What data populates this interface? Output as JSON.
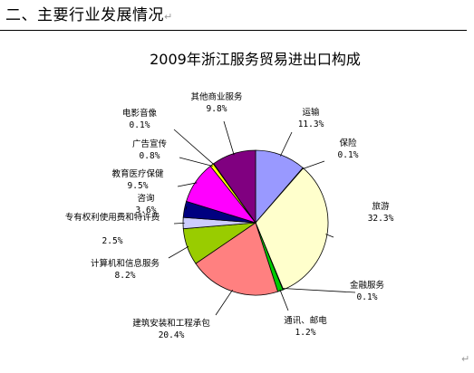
{
  "document": {
    "heading": "二、主要行业发展情况",
    "paragraph_mark": "↵"
  },
  "chart_data": {
    "type": "pie",
    "title": "2009年浙江服务贸易进出口构成",
    "unit": "%",
    "slices": [
      {
        "name": "运输",
        "value": 11.3,
        "label": "11.3%",
        "color": "#9999ff"
      },
      {
        "name": "保险",
        "value": 0.1,
        "label": "0.1%",
        "color": "#993366"
      },
      {
        "name": "旅游",
        "value": 32.3,
        "label": "32.3%",
        "color": "#ffffcc"
      },
      {
        "name": "金融服务",
        "value": 0.1,
        "label": "0.1%",
        "color": "#ccffff"
      },
      {
        "name": "通讯、邮电",
        "value": 1.2,
        "label": "1.2%",
        "color": "#00cc00"
      },
      {
        "name": "建筑安装和工程承包",
        "value": 20.4,
        "label": "20.4%",
        "color": "#ff8080"
      },
      {
        "name": "计算机和信息服务",
        "value": 8.2,
        "label": "8.2%",
        "color": "#99cc00"
      },
      {
        "name": "专有权利使用费和特许费",
        "value": 2.5,
        "label": "2.5%",
        "color": "#ccccff"
      },
      {
        "name": "咨询",
        "value": 3.6,
        "label": "3.6%",
        "color": "#000080"
      },
      {
        "name": "教育医疗保健",
        "value": 9.5,
        "label": "9.5%",
        "color": "#ff00ff"
      },
      {
        "name": "广告宣传",
        "value": 0.8,
        "label": "0.8%",
        "color": "#ffff00"
      },
      {
        "name": "电影音像",
        "value": 0.1,
        "label": "0.1%",
        "color": "#00ffff"
      },
      {
        "name": "其他商业服务",
        "value": 9.8,
        "label": "9.8%",
        "color": "#800080"
      }
    ],
    "start_angle_deg": 0,
    "direction": "clockwise",
    "legend": "none",
    "data_labels": "outside-with-leader-lines"
  }
}
